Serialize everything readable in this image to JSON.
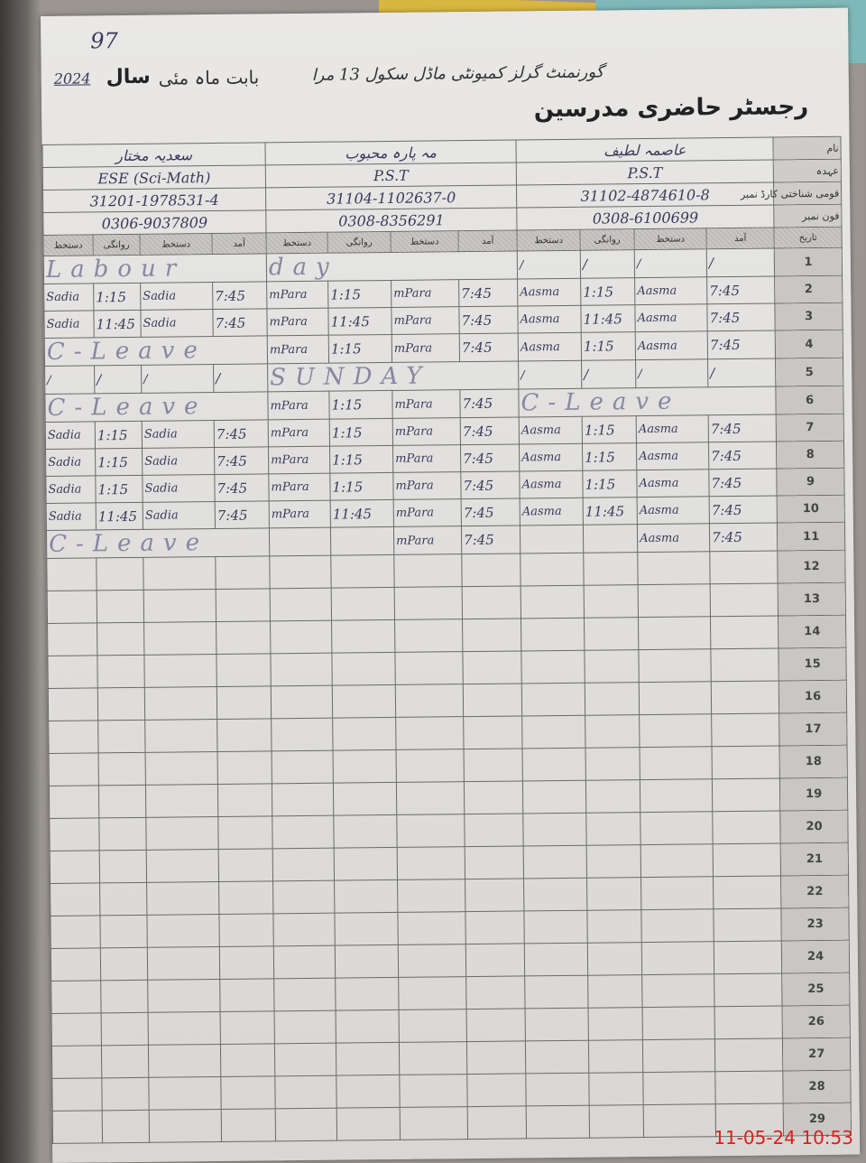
{
  "page_number": "97",
  "header": {
    "title": "رجسٹر حاضری مدرسین",
    "school": "گورنمنٹ گرلز کمیونٹی ماڈل سکول 13 مرا",
    "month": "بابت ماہ مئی",
    "year_label": "سال",
    "year": "2024"
  },
  "row_labels": {
    "name": "نام",
    "post": "عہدہ",
    "cnic": "قومی شناختی کارڈ نمبر",
    "phone": "فون نمبر",
    "date": "تاریخ"
  },
  "column_headers": [
    "دستخط",
    "روانگی",
    "دستخط",
    "آمد"
  ],
  "teachers": [
    {
      "name": "سعدیہ مختار",
      "post": "ESE (Sci-Math)",
      "cnic": "31201-1978531-4",
      "phone": "0306-9037809"
    },
    {
      "name": "مہ پارہ محبوب",
      "post": "P.S.T",
      "cnic": "31104-1102637-0",
      "phone": "0308-8356291"
    },
    {
      "name": "عاصمہ لطیف",
      "post": "P.S.T",
      "cnic": "31102-4874610-8",
      "phone": "0308-6100699"
    }
  ],
  "days": [
    {
      "date": "1",
      "t": [
        {
          "note": "Labour"
        },
        {
          "note": "day"
        },
        {
          "cells": [
            "/",
            "/",
            "/",
            "/"
          ]
        }
      ]
    },
    {
      "date": "2",
      "t": [
        {
          "cells": [
            "Sadia",
            "1:15",
            "Sadia",
            "7:45"
          ]
        },
        {
          "cells": [
            "mPara",
            "1:15",
            "mPara",
            "7:45"
          ]
        },
        {
          "cells": [
            "Aasma",
            "1:15",
            "Aasma",
            "7:45"
          ]
        }
      ]
    },
    {
      "date": "3",
      "t": [
        {
          "cells": [
            "Sadia",
            "11:45",
            "Sadia",
            "7:45"
          ]
        },
        {
          "cells": [
            "mPara",
            "11:45",
            "mPara",
            "7:45"
          ]
        },
        {
          "cells": [
            "Aasma",
            "11:45",
            "Aasma",
            "7:45"
          ]
        }
      ]
    },
    {
      "date": "4",
      "t": [
        {
          "note": "C-Leave"
        },
        {
          "cells": [
            "mPara",
            "1:15",
            "mPara",
            "7:45"
          ]
        },
        {
          "cells": [
            "Aasma",
            "1:15",
            "Aasma",
            "7:45"
          ]
        }
      ]
    },
    {
      "date": "5",
      "t": [
        {
          "cells": [
            "/",
            "/",
            "/",
            "/"
          ]
        },
        {
          "note": "SUNDAY"
        },
        {
          "cells": [
            "/",
            "/",
            "/",
            "/"
          ]
        }
      ]
    },
    {
      "date": "6",
      "t": [
        {
          "note": "C-Leave"
        },
        {
          "cells": [
            "mPara",
            "1:15",
            "mPara",
            "7:45"
          ]
        },
        {
          "note": "C-Leave"
        }
      ]
    },
    {
      "date": "7",
      "t": [
        {
          "cells": [
            "Sadia",
            "1:15",
            "Sadia",
            "7:45"
          ]
        },
        {
          "cells": [
            "mPara",
            "1:15",
            "mPara",
            "7:45"
          ]
        },
        {
          "cells": [
            "Aasma",
            "1:15",
            "Aasma",
            "7:45"
          ]
        }
      ]
    },
    {
      "date": "8",
      "t": [
        {
          "cells": [
            "Sadia",
            "1:15",
            "Sadia",
            "7:45"
          ]
        },
        {
          "cells": [
            "mPara",
            "1:15",
            "mPara",
            "7:45"
          ]
        },
        {
          "cells": [
            "Aasma",
            "1:15",
            "Aasma",
            "7:45"
          ]
        }
      ]
    },
    {
      "date": "9",
      "t": [
        {
          "cells": [
            "Sadia",
            "1:15",
            "Sadia",
            "7:45"
          ]
        },
        {
          "cells": [
            "mPara",
            "1:15",
            "mPara",
            "7:45"
          ]
        },
        {
          "cells": [
            "Aasma",
            "1:15",
            "Aasma",
            "7:45"
          ]
        }
      ]
    },
    {
      "date": "10",
      "t": [
        {
          "cells": [
            "Sadia",
            "11:45",
            "Sadia",
            "7:45"
          ]
        },
        {
          "cells": [
            "mPara",
            "11:45",
            "mPara",
            "7:45"
          ]
        },
        {
          "cells": [
            "Aasma",
            "11:45",
            "Aasma",
            "7:45"
          ]
        }
      ]
    },
    {
      "date": "11",
      "t": [
        {
          "note": "C-Leave"
        },
        {
          "cells": [
            "",
            "",
            "mPara",
            "7:45"
          ]
        },
        {
          "cells": [
            "",
            "",
            "Aasma",
            "7:45"
          ]
        }
      ]
    },
    {
      "date": "12"
    },
    {
      "date": "13"
    },
    {
      "date": "14"
    },
    {
      "date": "15"
    },
    {
      "date": "16"
    },
    {
      "date": "17"
    },
    {
      "date": "18"
    },
    {
      "date": "19"
    },
    {
      "date": "20"
    },
    {
      "date": "21"
    },
    {
      "date": "22"
    },
    {
      "date": "23"
    },
    {
      "date": "24"
    },
    {
      "date": "25"
    },
    {
      "date": "26"
    },
    {
      "date": "27"
    },
    {
      "date": "28"
    },
    {
      "date": "29"
    }
  ],
  "camera_timestamp": "11-05-24  10:53",
  "colors": {
    "ink": "#3b3a5a",
    "pencil": "#8a86a0",
    "timestamp": "#e0201a"
  }
}
